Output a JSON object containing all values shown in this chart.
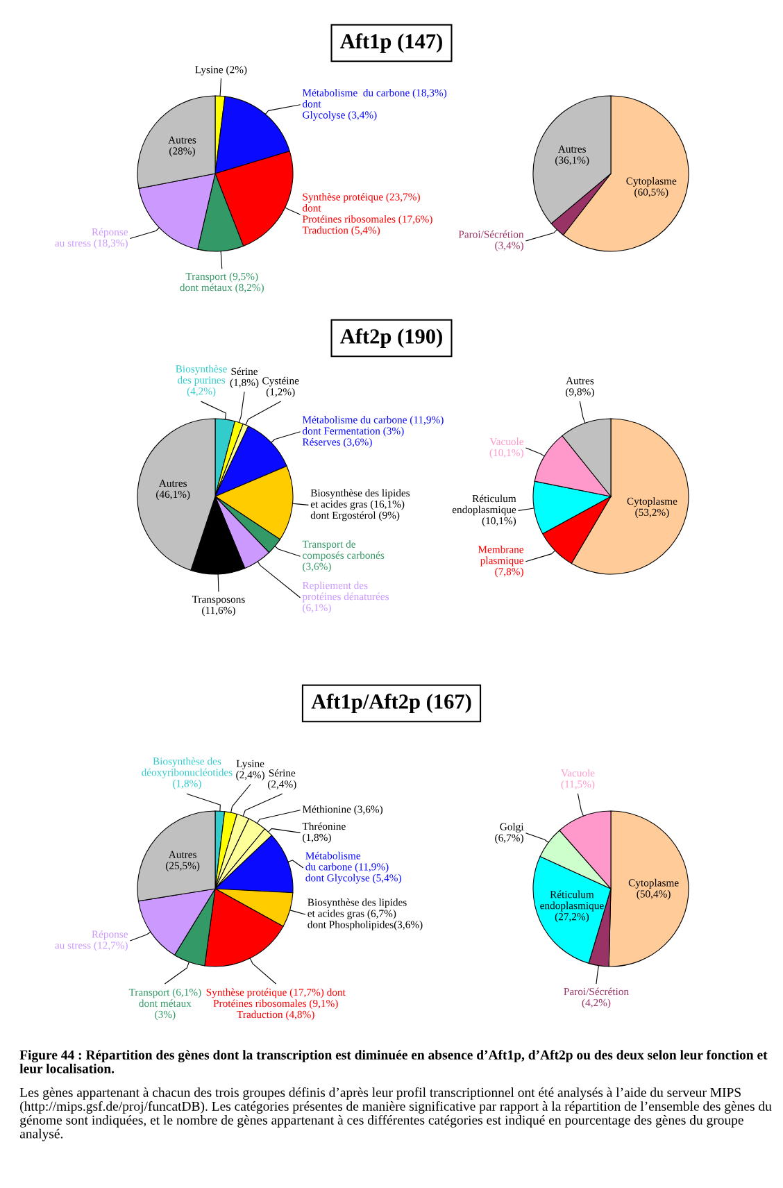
{
  "chart_data": [
    {
      "type": "pie",
      "title": "Aft1p (147)",
      "categories": [
        "Lysine (2%)",
        "Métabolisme  du carbone (18,3%)\ndont\nGlycolyse (3,4%)",
        "Synthèse protéique (23,7%)\ndont\nProtéines ribosomales (17,6%)\nTraduction (5,4%)",
        "Transport (9,5%)\ndont métaux (8,2%)",
        "Réponse\nau stress (18,3%)",
        "Autres\n(28%)"
      ],
      "values": [
        2,
        18.3,
        23.7,
        9.5,
        18.3,
        28
      ],
      "colors": [
        "#ffff00",
        "#0a0aff",
        "#ff0000",
        "#339966",
        "#cc99ff",
        "#c0c0c0"
      ]
    },
    {
      "type": "pie",
      "categories": [
        "Cytoplasme\n(60,5%)",
        "Paroi/Sécrétion\n(3,4%)",
        "Autres\n(36,1%)"
      ],
      "values": [
        60.5,
        3.4,
        36.1
      ],
      "colors": [
        "#ffcc99",
        "#993366",
        "#c0c0c0"
      ]
    },
    {
      "type": "pie",
      "title": "Aft2p (190)",
      "categories": [
        "Biosynthèse\ndes purines\n(4,2%)",
        "Sérine\n(1,8%)",
        "Cystéine\n(1,2%)",
        "Métabolisme du carbone (11,9%)\ndont Fermentation (3%)\nRéserves (3,6%)",
        "Biosynthèse des lipides\net acides gras (16,1%)\ndont Ergostérol (9%)",
        "Transport de\ncomposés carbonés\n(3,6%)",
        "Repliement des\nprotéines dénaturées\n(6,1%)",
        "Transposons\n(11,6%)",
        "Autres\n(46,1%)"
      ],
      "values": [
        4.2,
        1.8,
        1.2,
        11.9,
        16.1,
        3.6,
        6.1,
        11.6,
        46.1
      ],
      "colors": [
        "#33cccc",
        "#ffff00",
        "#ffff99",
        "#0a0aff",
        "#ffcc00",
        "#339966",
        "#cc99ff",
        "#000000",
        "#c0c0c0"
      ]
    },
    {
      "type": "pie",
      "categories": [
        "Cytoplasme\n(53,2%)",
        "Membrane\nplasmique\n(7,8%)",
        "Réticulum\nendoplasmique\n(10,1%)",
        "Vacuole\n(10,1%)",
        "Autres\n(9,8%)"
      ],
      "values": [
        53.2,
        7.8,
        10.1,
        10.1,
        9.8
      ],
      "colors": [
        "#ffcc99",
        "#ff0000",
        "#00ffff",
        "#ff99cc",
        "#c0c0c0"
      ]
    },
    {
      "type": "pie",
      "title": "Aft1p/Aft2p (167)",
      "categories": [
        "Biosynthèse des\ndéoxyribonucléotides\n(1,8%)",
        "Lysine\n(2,4%)",
        "Sérine\n(2,4%)",
        "Méthionine (3,6%)",
        "Thréonine\n(1,8%)",
        "Métabolisme\ndu carbone (11,9%)\ndont Glycolyse (5,4%)",
        "Biosynthèse des lipides\net acides gras (6,7%)\ndont Phospholipides(3,6%)",
        "Synthèse protéique (17,7%) dont\nProtéines ribosomales (9,1%)\nTraduction (4,8%)",
        "Transport (6,1%)\ndont métaux\n(3%)",
        "Réponse\nau stress (12,7%)",
        "Autres\n(25,5%)"
      ],
      "values": [
        1.8,
        2.4,
        2.4,
        3.6,
        1.8,
        11.9,
        6.7,
        17.7,
        6.1,
        12.7,
        25.5
      ],
      "colors": [
        "#33cccc",
        "#ffff00",
        "#ffff99",
        "#ffff99",
        "#ffff99",
        "#0a0aff",
        "#ffcc00",
        "#ff0000",
        "#339966",
        "#cc99ff",
        "#c0c0c0"
      ]
    },
    {
      "type": "pie",
      "categories": [
        "Cytoplasme\n(50,4%)",
        "Paroi/Sécrétion\n(4,2%)",
        "Réticulum\nendoplasmique\n(27,2%)",
        "Golgi\n(6,7%)",
        "Vacuole\n(11,5%)"
      ],
      "values": [
        50.4,
        4.2,
        27.2,
        6.7,
        11.5
      ],
      "colors": [
        "#ffcc99",
        "#993366",
        "#00ffff",
        "#ccffcc",
        "#ff99cc"
      ],
      "annotations": [
        "Figure 44 : Répartition des gènes dont la transcription est diminuée en absence d’Aft1p, d’Aft2p ou des deux selon leur fonction et leur localisation.",
        "Les gènes appartenant à chacun des trois groupes définis d’après leur profil transcriptionnel ont été analysés à l’aide du serveur MIPS (http://mips.gsf.de/proj/funcatDB). Les catégories présentes de manière significative par rapport à la répartition de l’ensemble des gènes du génome sont indiquées, et le nombre de gènes appartenant à ces différentes catégories est indiqué en pourcentage des gènes du groupe analysé."
      ]
    }
  ]
}
